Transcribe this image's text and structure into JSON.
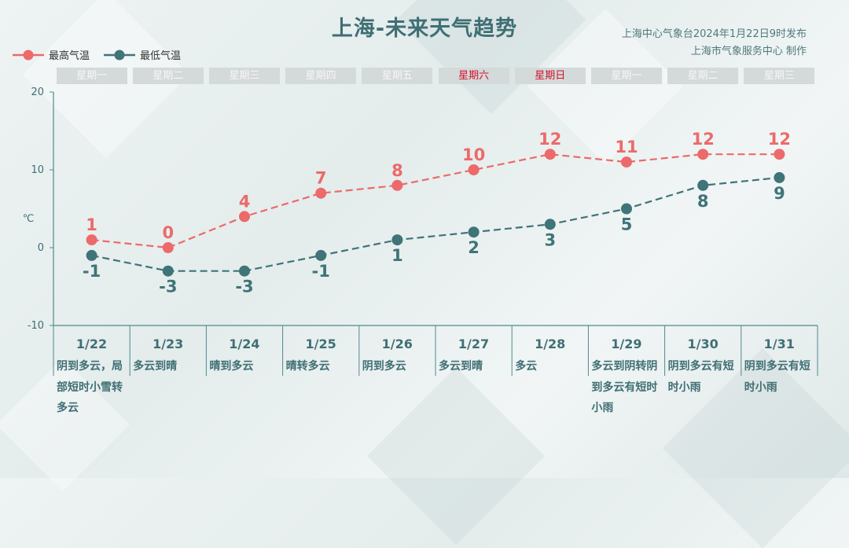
{
  "title": "上海-未来天气趋势",
  "source_line1": "上海中心气象台2024年1月22日9时发布",
  "source_line2": "上海市气象服务中心 制作",
  "colors": {
    "high": "#ec6a6a",
    "low": "#3f7478",
    "axis": "#4f8a8e",
    "weekend": "#d0132b"
  },
  "chart_data": {
    "type": "line",
    "categories": [
      "1/22",
      "1/23",
      "1/24",
      "1/25",
      "1/26",
      "1/27",
      "1/28",
      "1/29",
      "1/30",
      "1/31"
    ],
    "weekdays": [
      "星期一",
      "星期二",
      "星期三",
      "星期四",
      "星期五",
      "星期六",
      "星期日",
      "星期一",
      "星期二",
      "星期三"
    ],
    "weekend_flags": [
      false,
      false,
      false,
      false,
      false,
      true,
      true,
      false,
      false,
      false
    ],
    "weather": [
      "阴到多云，局部短时小雪转多云",
      "多云到晴",
      "晴到多云",
      "晴转多云",
      "阴到多云",
      "多云到晴",
      "多云",
      "多云到阴转阴到多云有短时小雨",
      "阴到多云有短时小雨",
      "阴到多云有短时小雨"
    ],
    "series": [
      {
        "name": "最高气温",
        "values": [
          1,
          0,
          4,
          7,
          8,
          10,
          12,
          11,
          12,
          12
        ]
      },
      {
        "name": "最低气温",
        "values": [
          -1,
          -3,
          -3,
          -1,
          1,
          2,
          3,
          5,
          8,
          9
        ]
      }
    ],
    "ylabel": "℃",
    "ylim": [
      -10,
      20
    ],
    "yticks": [
      -10,
      0,
      10,
      20
    ],
    "legend": "top-left"
  }
}
